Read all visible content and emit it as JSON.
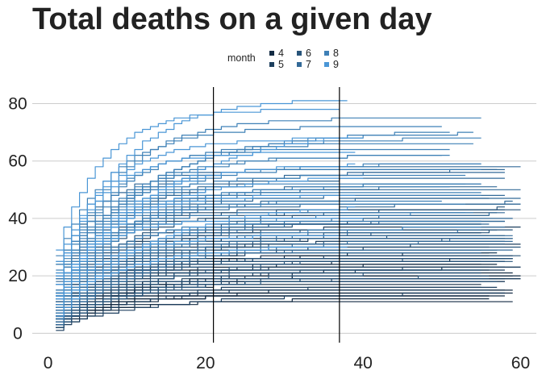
{
  "chart_data": {
    "type": "line",
    "title": "Total deaths on a given day",
    "xlabel": "",
    "ylabel": "",
    "xlim": [
      -2,
      62
    ],
    "ylim": [
      -3,
      88
    ],
    "x_ticks": [
      0,
      20,
      40,
      60
    ],
    "y_ticks": [
      0,
      20,
      40,
      60,
      80
    ],
    "grid": "horizontal major",
    "vlines": [
      21,
      37
    ],
    "legend": {
      "title": "month",
      "placement": "top",
      "entries": [
        {
          "label": "4",
          "color": "#132b43"
        },
        {
          "label": "5",
          "color": "#1d3f5e"
        },
        {
          "label": "6",
          "color": "#28547a"
        },
        {
          "label": "7",
          "color": "#336a98"
        },
        {
          "label": "8",
          "color": "#3e80b6"
        },
        {
          "label": "9",
          "color": "#4a96d6"
        }
      ]
    },
    "series_summary": "About 150 cumulative-deaths lines (x from 1 to 35-60). Approximate plateau values and the line color/month group listed below; early months plateau low (10-40), later months plateau high (40-83).",
    "series": [
      {
        "month": "4",
        "n": 28,
        "plateau_range": [
          11,
          29
        ],
        "x_end": 60
      },
      {
        "month": "5",
        "n": 30,
        "plateau_range": [
          14,
          38
        ],
        "x_end": 60
      },
      {
        "month": "6",
        "n": 28,
        "plateau_range": [
          18,
          45
        ],
        "x_end": 60
      },
      {
        "month": "7",
        "n": 26,
        "plateau_range": [
          28,
          58
        ],
        "x_end": 60
      },
      {
        "month": "8",
        "n": 24,
        "plateau_range": [
          38,
          74
        ],
        "x_end": 55
      },
      {
        "month": "9",
        "n": 12,
        "plateau_range": [
          30,
          83
        ],
        "x_end": 40
      }
    ]
  }
}
